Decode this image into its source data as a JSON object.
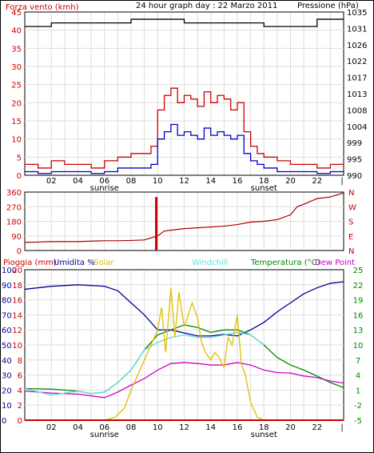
{
  "chart_data": [
    {
      "type": "line",
      "title": "24 hour graph day : 22 Marzo 2011",
      "left_axis_label": "Forza vento (kmh)",
      "right_axis_label": "Pressione (hPa)",
      "left_ticks": [
        "0",
        "5",
        "10",
        "15",
        "20",
        "25",
        "30",
        "35",
        "40",
        "45"
      ],
      "left_range": [
        0,
        45
      ],
      "right_ticks": [
        "990",
        "995",
        "999",
        "1004",
        "1008",
        "1013",
        "1017",
        "1022",
        "1026",
        "1031",
        "1035"
      ],
      "right_range": [
        990,
        1035
      ],
      "x_ticks": [
        "02",
        "04",
        "06",
        "08",
        "10",
        "12",
        "14",
        "16",
        "18",
        "20",
        "22"
      ],
      "x_markers": {
        "sunrise": "sunrise",
        "sunset": "sunset"
      },
      "x_range": [
        0,
        24
      ],
      "series": [
        {
          "color": "#000000",
          "axis": "right",
          "x": [
            0,
            2,
            4,
            6,
            8,
            10,
            12,
            14,
            16,
            18,
            20,
            22,
            24
          ],
          "values": [
            1031,
            1032,
            1032,
            1032,
            1033,
            1033,
            1032,
            1032,
            1032,
            1031,
            1031,
            1033,
            1033
          ]
        },
        {
          "color": "#cc0000",
          "axis": "left",
          "x": [
            0,
            1,
            2,
            3,
            4,
            5,
            6,
            7,
            8,
            9,
            9.5,
            10,
            10.5,
            11,
            11.5,
            12,
            12.5,
            13,
            13.5,
            14,
            14.5,
            15,
            15.5,
            16,
            16.5,
            17,
            17.5,
            18,
            19,
            20,
            21,
            22,
            23,
            24
          ],
          "values": [
            3,
            2,
            4,
            3,
            3,
            2,
            4,
            5,
            6,
            6,
            8,
            18,
            22,
            24,
            20,
            22,
            21,
            19,
            23,
            20,
            22,
            21,
            18,
            20,
            12,
            8,
            6,
            5,
            4,
            3,
            3,
            2,
            3,
            2
          ]
        },
        {
          "color": "#0000cc",
          "axis": "left",
          "x": [
            0,
            1,
            2,
            3,
            4,
            5,
            6,
            7,
            8,
            9,
            9.5,
            10,
            10.5,
            11,
            11.5,
            12,
            12.5,
            13,
            13.5,
            14,
            14.5,
            15,
            15.5,
            16,
            16.5,
            17,
            17.5,
            18,
            19,
            20,
            21,
            22,
            23,
            24
          ],
          "values": [
            1,
            0.5,
            1,
            1,
            1,
            0.5,
            1,
            2,
            2,
            2,
            3,
            10,
            12,
            14,
            11,
            12,
            11,
            10,
            13,
            11,
            12,
            11,
            10,
            11,
            6,
            4,
            3,
            2,
            1,
            1,
            1,
            0.5,
            1,
            1
          ]
        }
      ]
    },
    {
      "type": "line",
      "left_ticks": [
        "0",
        "90",
        "180",
        "270",
        "360"
      ],
      "left_range": [
        0,
        360
      ],
      "right_ticks": [
        "N",
        "W",
        "S",
        "E",
        "N"
      ],
      "series": [
        {
          "color": "#aa0000",
          "x": [
            0,
            1,
            2,
            3,
            4,
            5,
            6,
            7,
            8,
            9,
            10,
            10.5,
            11,
            12,
            13,
            14,
            15,
            16,
            17,
            18,
            19,
            20,
            20.5,
            21,
            22,
            23,
            24
          ],
          "values": [
            50,
            52,
            55,
            55,
            55,
            58,
            60,
            60,
            62,
            65,
            90,
            120,
            125,
            135,
            140,
            145,
            150,
            160,
            175,
            180,
            190,
            220,
            270,
            285,
            320,
            330,
            355
          ]
        }
      ],
      "spikes": [
        {
          "x": 9.9,
          "values": [
            0,
            330
          ]
        }
      ]
    },
    {
      "type": "line",
      "header_labels": [
        "Pioggia (mm)",
        "Umidita %",
        "Solar",
        "Windchill",
        "Temperatura (°C)",
        "Dew Point"
      ],
      "header_colors": [
        "#cc0000",
        "#000099",
        "#e0c000",
        "#66dddd",
        "#008800",
        "#cc00cc"
      ],
      "left_ticks_outer": [
        "0",
        "10",
        "20",
        "30",
        "40",
        "50",
        "60",
        "70",
        "80",
        "90",
        "100"
      ],
      "left_ticks_inner": [
        "0",
        "2",
        "4",
        "6",
        "8",
        "10",
        "12",
        "14",
        "16",
        "18",
        "20"
      ],
      "right_ticks": [
        "-5",
        "-2",
        "1",
        "4",
        "7",
        "10",
        "13",
        "16",
        "19",
        "22",
        "25"
      ],
      "right_range": [
        -5,
        25
      ],
      "left_range": [
        0,
        100
      ],
      "x_ticks": [
        "02",
        "04",
        "06",
        "08",
        "10",
        "12",
        "14",
        "16",
        "18",
        "20",
        "22"
      ],
      "x_markers": {
        "sunrise": "sunrise",
        "sunset": "sunset"
      },
      "series": [
        {
          "name": "Umidita %",
          "color": "#000099",
          "x": [
            0,
            2,
            4,
            6,
            7,
            8,
            9,
            10,
            11,
            12,
            13,
            14,
            15,
            16,
            17,
            18,
            19,
            20,
            21,
            22,
            23,
            24
          ],
          "values": [
            87,
            89,
            90,
            89,
            86,
            78,
            70,
            60,
            60,
            58,
            56,
            56,
            57,
            56,
            60,
            65,
            72,
            78,
            84,
            88,
            91,
            92
          ]
        },
        {
          "name": "Temperatura (°C)",
          "color": "#008800",
          "x": [
            0,
            2,
            4,
            5,
            6,
            7,
            8,
            9,
            10,
            11,
            12,
            13,
            14,
            15,
            16,
            17,
            18,
            19,
            20,
            21,
            22,
            23,
            24
          ],
          "values": [
            1.3,
            1.2,
            0.8,
            0.3,
            0.6,
            2.5,
            5,
            9,
            12,
            13,
            14,
            13.5,
            12.5,
            13,
            13,
            12,
            10,
            7.5,
            6,
            5,
            3.8,
            2.5,
            1.5
          ]
        },
        {
          "name": "Dew Point",
          "color": "#cc00cc",
          "x": [
            0,
            2,
            4,
            6,
            7,
            8,
            9,
            10,
            11,
            12,
            13,
            14,
            15,
            16,
            17,
            18,
            19,
            20,
            21,
            22,
            23,
            24
          ],
          "values": [
            0.8,
            0.4,
            0.2,
            -0.5,
            0.6,
            2,
            3.3,
            5,
            6.3,
            6.5,
            6.3,
            6,
            6,
            6.5,
            6,
            5,
            4.5,
            4.4,
            3.8,
            3.5,
            2.8,
            2.4
          ]
        },
        {
          "name": "Windchill",
          "color": "#66dddd",
          "x": [
            0,
            2,
            4,
            5,
            6,
            7,
            8,
            9,
            10,
            11,
            12,
            13,
            14,
            15,
            16,
            17,
            18
          ],
          "values": [
            1.3,
            0,
            0.8,
            0.3,
            0.6,
            2.5,
            5,
            9,
            10.5,
            11.5,
            12,
            11.5,
            11.5,
            12,
            12.5,
            12,
            10
          ]
        },
        {
          "name": "Solar",
          "color": "#e0c000",
          "x": [
            6,
            6.8,
            7.5,
            8,
            8.5,
            9,
            9.5,
            10,
            10.3,
            10.6,
            11,
            11.3,
            11.6,
            12,
            12.3,
            12.6,
            13,
            13.3,
            13.6,
            14,
            14.3,
            14.6,
            15,
            15.3,
            15.6,
            16,
            16.3,
            16.6,
            17,
            17.5,
            18
          ],
          "values": [
            0,
            2,
            8,
            20,
            30,
            40,
            50,
            60,
            75,
            45,
            88,
            55,
            85,
            62,
            70,
            78,
            68,
            52,
            45,
            40,
            45,
            42,
            35,
            55,
            50,
            70,
            38,
            30,
            12,
            2,
            0
          ]
        },
        {
          "name": "Pioggia (mm)",
          "color": "#cc0000",
          "x": [
            0,
            24
          ],
          "values": [
            0,
            0
          ]
        }
      ]
    }
  ]
}
